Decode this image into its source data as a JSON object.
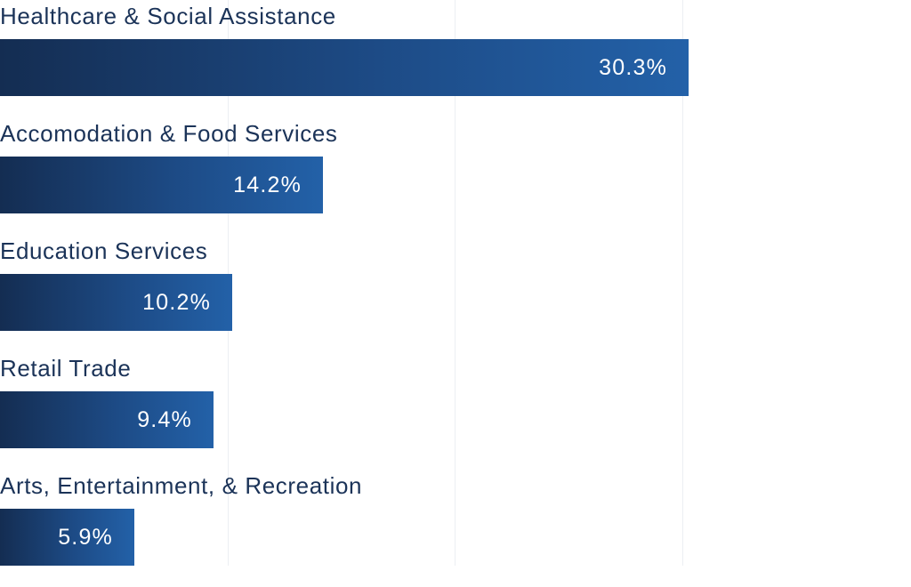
{
  "chart_data": {
    "type": "bar",
    "orientation": "horizontal",
    "categories": [
      "Healthcare & Social Assistance",
      "Accomodation & Food Services",
      "Education Services",
      "Retail Trade",
      "Arts, Entertainment, & Recreation"
    ],
    "values": [
      30.3,
      14.2,
      10.2,
      9.4,
      5.9
    ],
    "value_labels": [
      "30.3%",
      "14.2%",
      "10.2%",
      "9.4%",
      "5.9%"
    ],
    "xlim": [
      0,
      40
    ],
    "grid": true,
    "bar_color": "#1d4b86",
    "bar_color_light": "#2361a8",
    "bar_color_dark": "#142d52",
    "label_color": "#1b3358"
  }
}
